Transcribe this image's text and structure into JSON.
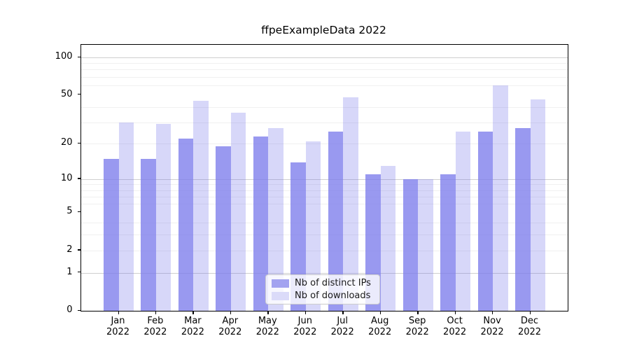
{
  "figure": {
    "title": "ffpeExampleData 2022"
  },
  "chart_data": {
    "type": "bar",
    "title": "ffpeExampleData 2022",
    "categories": [
      "Jan",
      "Feb",
      "Mar",
      "Apr",
      "May",
      "Jun",
      "Jul",
      "Aug",
      "Sep",
      "Oct",
      "Nov",
      "Dec"
    ],
    "year": "2022",
    "series": [
      {
        "name": "Nb of distinct IPs",
        "fill": "rgba(124,124,236,0.78)",
        "legend_swatch": "#a3a3f0",
        "values": [
          15,
          15,
          22,
          19,
          23,
          14,
          25,
          11,
          10,
          11,
          25,
          27
        ]
      },
      {
        "name": "Nb of downloads",
        "fill": "rgba(124,124,236,0.30)",
        "legend_swatch": "#dbdbf9",
        "values": [
          30,
          29,
          45,
          36,
          27,
          21,
          48,
          13,
          10,
          25,
          60,
          46
        ]
      }
    ],
    "xlabel": "",
    "ylabel": "",
    "yscale": "log1p",
    "ylim": [
      0,
      126
    ],
    "yticks": [
      0,
      1,
      2,
      5,
      10,
      20,
      50,
      100
    ],
    "major_gridlines": [
      1,
      10,
      100
    ],
    "minor_gridlines": [
      2,
      3,
      4,
      6,
      7,
      8,
      9,
      20,
      30,
      40,
      60,
      70,
      80,
      90
    ],
    "grid": true,
    "legend_position": "inside bottom-center"
  },
  "legend": {
    "items": [
      {
        "label": "Nb of distinct IPs"
      },
      {
        "label": "Nb of downloads"
      }
    ]
  },
  "colors": {
    "major_grid": "#cfcfcf",
    "minor_grid": "#f0f0f0",
    "frame": "#000000",
    "text": "#000000"
  }
}
